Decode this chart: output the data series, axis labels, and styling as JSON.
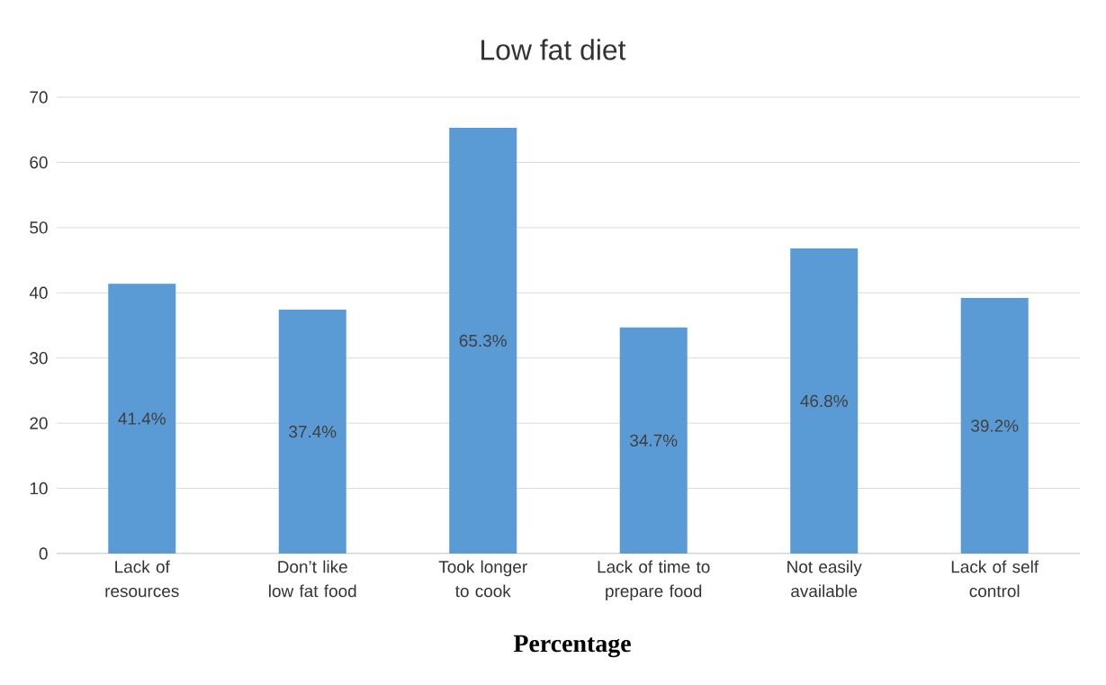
{
  "chart_data": {
    "type": "bar",
    "title": "Low fat diet",
    "xlabel": "**Percentage**",
    "categories": [
      "Lack of resources",
      "Don’t like low fat food",
      "Took longer to cook",
      "Lack of time to prepare food",
      "Not easily available",
      "Lack of self control"
    ],
    "values": [
      41.4,
      37.4,
      65.3,
      34.7,
      46.8,
      39.2
    ],
    "value_labels": [
      "41.4%",
      "37.4%",
      "65.3%",
      "34.7%",
      "46.8%",
      "39.2%"
    ],
    "color": "#5b9bd5",
    "ylim": [
      0,
      70
    ],
    "yticks": [
      0,
      10,
      20,
      30,
      40,
      50,
      60,
      70
    ],
    "grid": "y"
  }
}
